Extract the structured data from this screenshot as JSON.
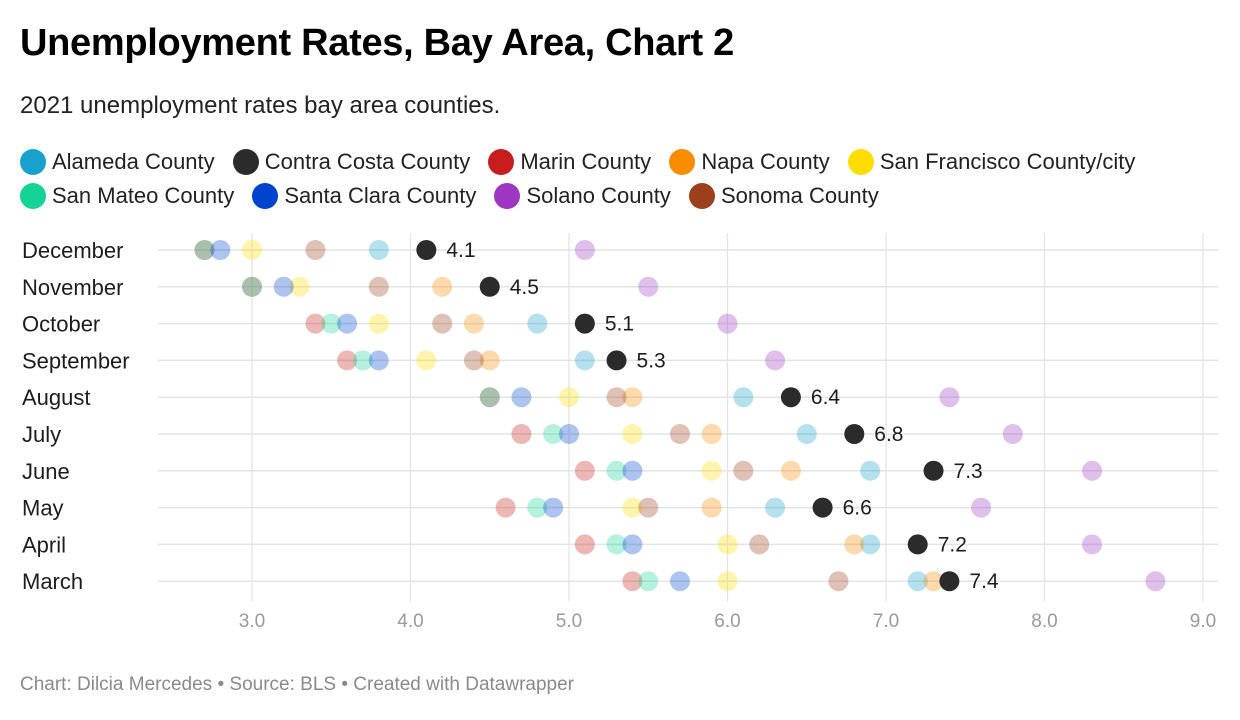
{
  "title": "Unemployment Rates, Bay Area, Chart 2",
  "subtitle": "2021 unemployment rates bay area counties.",
  "footer": {
    "chart_credit": "Chart: Dilcia Mercedes",
    "separator": " • ",
    "source": "Source: BLS",
    "tool": "Created with Datawrapper"
  },
  "chart_data": {
    "type": "scatter",
    "title": "Unemployment Rates, Bay Area, Chart 2",
    "subtitle": "2021 unemployment rates bay area counties.",
    "xlim": [
      2.4,
      9.1
    ],
    "x_ticks": [
      3.0,
      4.0,
      5.0,
      6.0,
      7.0,
      8.0,
      9.0
    ],
    "x_tick_labels": [
      "3.0",
      "4.0",
      "5.0",
      "6.0",
      "7.0",
      "8.0",
      "9.0"
    ],
    "grid": true,
    "legend_position": "top",
    "categories": [
      "December",
      "November",
      "October",
      "September",
      "August",
      "July",
      "June",
      "May",
      "April",
      "March"
    ],
    "highlight_series": "Contra Costa County",
    "series": [
      {
        "name": "Alameda County",
        "color": "#18a1cd",
        "values": [
          3.8,
          null,
          4.8,
          5.1,
          6.1,
          6.5,
          6.9,
          6.3,
          6.9,
          7.2
        ]
      },
      {
        "name": "Contra Costa County",
        "color": "#2b2b2b",
        "values": [
          4.1,
          4.5,
          5.1,
          5.3,
          6.4,
          6.8,
          7.3,
          6.6,
          7.2,
          7.4
        ]
      },
      {
        "name": "Marin County",
        "color": "#c71e1d",
        "values": [
          2.7,
          3.0,
          3.4,
          3.6,
          4.5,
          4.7,
          5.1,
          4.6,
          5.1,
          5.4
        ]
      },
      {
        "name": "Napa County",
        "color": "#fa8c00",
        "values": [
          null,
          4.2,
          4.4,
          4.5,
          5.4,
          5.9,
          6.4,
          5.9,
          6.8,
          7.3
        ]
      },
      {
        "name": "San Francisco County/city",
        "color": "#ffdd00",
        "values": [
          3.0,
          3.3,
          3.8,
          4.1,
          5.0,
          5.4,
          5.9,
          5.4,
          6.0,
          6.0
        ]
      },
      {
        "name": "San Mateo County",
        "color": "#15d397",
        "values": [
          2.7,
          3.0,
          3.5,
          3.7,
          4.5,
          4.9,
          5.3,
          4.8,
          5.3,
          5.5
        ]
      },
      {
        "name": "Santa Clara County",
        "color": "#0043cf",
        "values": [
          2.8,
          3.2,
          3.6,
          3.8,
          4.7,
          5.0,
          5.4,
          4.9,
          5.4,
          5.7
        ]
      },
      {
        "name": "Solano County",
        "color": "#9d37c1",
        "values": [
          5.1,
          5.5,
          6.0,
          6.3,
          7.4,
          7.8,
          8.3,
          7.6,
          8.3,
          8.7
        ]
      },
      {
        "name": "Sonoma County",
        "color": "#9c3f1b",
        "values": [
          3.4,
          3.8,
          4.2,
          4.4,
          5.3,
          5.7,
          6.1,
          5.5,
          6.2,
          6.7
        ]
      }
    ],
    "data_labels": [
      "4.1",
      "4.5",
      "5.1",
      "5.3",
      "6.4",
      "6.8",
      "7.3",
      "6.6",
      "7.2",
      "7.4"
    ]
  }
}
